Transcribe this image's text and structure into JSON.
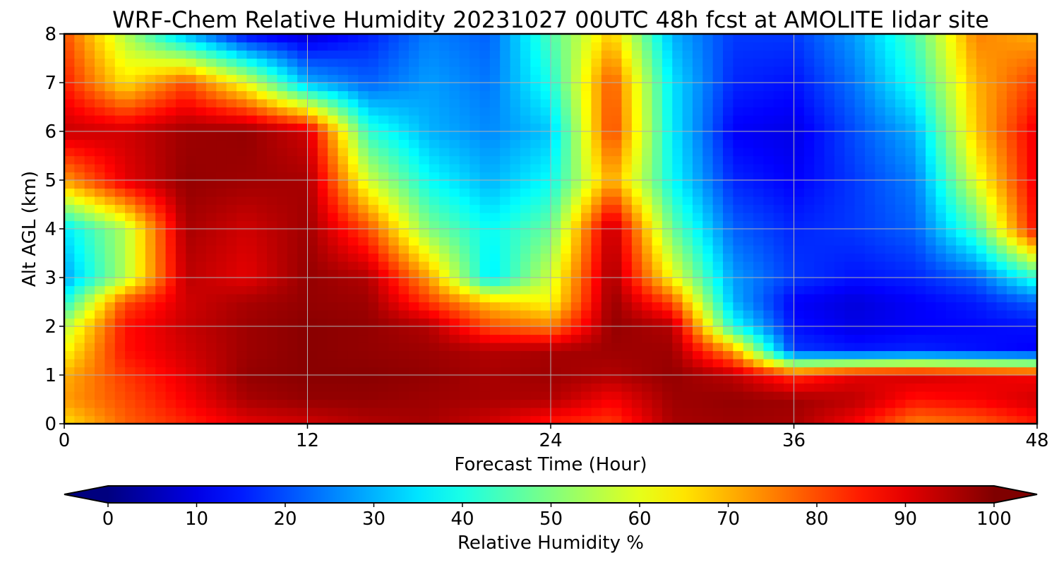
{
  "chart_data": {
    "type": "heatmap",
    "title": "WRF-Chem Relative Humidity 20231027 00UTC 48h fcst at AMOLITE lidar site",
    "xlabel": "Forecast Time (Hour)",
    "ylabel": "Alt AGL (km)",
    "xlim": [
      0,
      48
    ],
    "ylim": [
      0,
      8
    ],
    "x_ticks": [
      0,
      12,
      24,
      36,
      48
    ],
    "y_ticks": [
      0,
      1,
      2,
      3,
      4,
      5,
      6,
      7,
      8
    ],
    "grid": true,
    "colormap": "jet",
    "colorbar": {
      "label": "Relative Humidity %",
      "range": [
        0,
        100
      ],
      "ticks": [
        0,
        10,
        20,
        30,
        40,
        50,
        60,
        70,
        80,
        90,
        100
      ],
      "extend": "both",
      "orientation": "horizontal"
    },
    "x": [
      0,
      3,
      6,
      9,
      12,
      15,
      18,
      21,
      24,
      27,
      30,
      33,
      36,
      39,
      42,
      45,
      48
    ],
    "y": [
      0,
      0.5,
      1,
      1.5,
      2,
      2.5,
      3,
      4,
      5,
      6,
      7,
      8
    ],
    "z": [
      [
        65,
        78,
        84,
        90,
        92,
        95,
        96,
        92,
        85,
        82,
        96,
        97,
        96,
        88,
        75,
        78,
        85
      ],
      [
        72,
        80,
        88,
        96,
        98,
        98,
        97,
        96,
        95,
        88,
        97,
        98,
        97,
        94,
        86,
        88,
        92
      ],
      [
        70,
        82,
        90,
        98,
        99,
        99,
        98,
        96,
        97,
        95,
        98,
        94,
        82,
        90,
        92,
        90,
        88
      ],
      [
        62,
        86,
        92,
        97,
        99,
        98,
        97,
        95,
        96,
        97,
        97,
        72,
        18,
        15,
        16,
        14,
        12
      ],
      [
        55,
        86,
        93,
        97,
        99,
        98,
        95,
        80,
        75,
        98,
        95,
        40,
        14,
        10,
        12,
        13,
        14
      ],
      [
        40,
        80,
        92,
        96,
        98,
        97,
        82,
        68,
        62,
        98,
        80,
        30,
        12,
        9,
        12,
        15,
        22
      ],
      [
        28,
        55,
        94,
        90,
        98,
        95,
        72,
        35,
        58,
        97,
        62,
        28,
        18,
        14,
        16,
        22,
        42
      ],
      [
        35,
        55,
        96,
        92,
        97,
        80,
        50,
        38,
        48,
        95,
        48,
        22,
        16,
        18,
        22,
        45,
        88
      ],
      [
        72,
        90,
        98,
        97,
        96,
        58,
        38,
        30,
        38,
        72,
        38,
        16,
        12,
        18,
        25,
        60,
        90
      ],
      [
        93,
        92,
        97,
        98,
        92,
        42,
        30,
        26,
        32,
        82,
        36,
        12,
        10,
        20,
        30,
        68,
        90
      ],
      [
        85,
        65,
        80,
        60,
        30,
        22,
        28,
        24,
        40,
        80,
        35,
        16,
        14,
        24,
        40,
        70,
        82
      ],
      [
        80,
        55,
        30,
        12,
        8,
        15,
        25,
        22,
        45,
        68,
        30,
        18,
        18,
        28,
        45,
        75,
        70
      ]
    ]
  }
}
